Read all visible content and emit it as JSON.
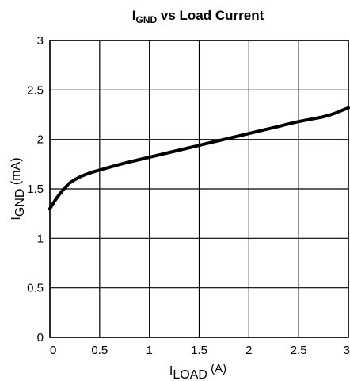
{
  "chart_data": {
    "type": "line",
    "title": {
      "main": "I",
      "sub": "GND",
      "rest": " vs Load Current"
    },
    "xlabel": {
      "main": "I",
      "sub": "LOAD",
      "rest": " (A)"
    },
    "ylabel": {
      "main": "I",
      "sub": "GND",
      "rest": " (mA)"
    },
    "xlim": [
      0,
      3
    ],
    "ylim": [
      0,
      3
    ],
    "xticks": [
      "0",
      "0.5",
      "1",
      "1.5",
      "2",
      "2.5",
      "3"
    ],
    "yticks": [
      "0",
      "0.5",
      "1",
      "1.5",
      "2",
      "2.5",
      "3"
    ],
    "grid": true,
    "series": [
      {
        "x": [
          0,
          0.05,
          0.1,
          0.15,
          0.2,
          0.3,
          0.4,
          0.5,
          0.75,
          1.0,
          1.25,
          1.5,
          1.75,
          2.0,
          2.25,
          2.5,
          2.75,
          2.85,
          2.95,
          3.0
        ],
        "y": [
          1.3,
          1.38,
          1.45,
          1.51,
          1.56,
          1.62,
          1.66,
          1.69,
          1.76,
          1.82,
          1.88,
          1.94,
          2.0,
          2.06,
          2.12,
          2.18,
          2.23,
          2.26,
          2.3,
          2.32
        ]
      }
    ]
  }
}
